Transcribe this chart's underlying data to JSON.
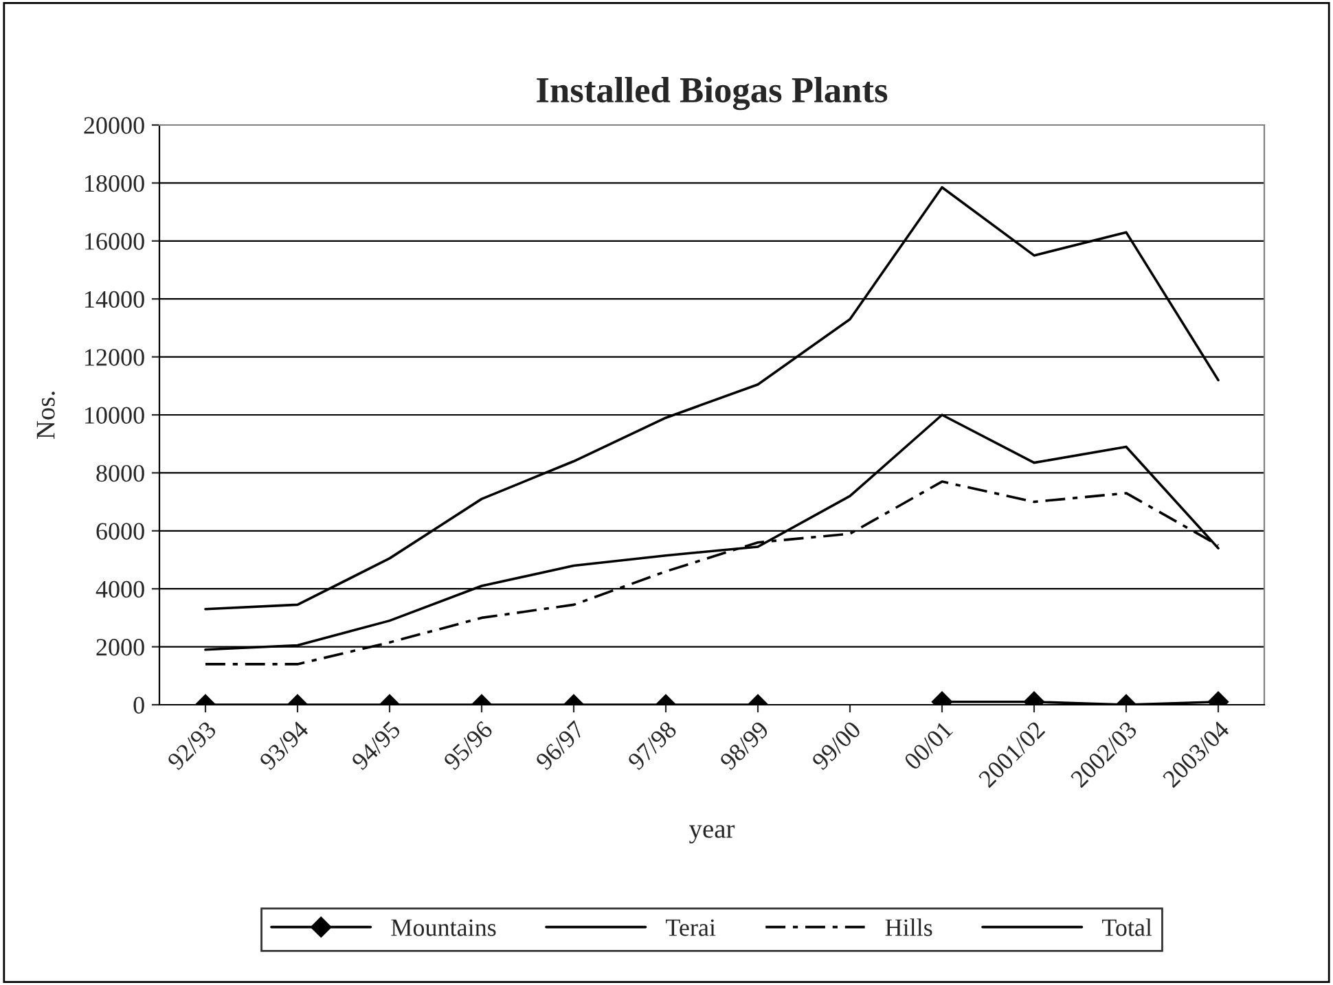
{
  "chart_data": {
    "type": "line",
    "title": "Installed Biogas Plants",
    "xlabel": "year",
    "ylabel": "Nos.",
    "categories": [
      "92/93",
      "93/94",
      "94/95",
      "95/96",
      "96/97",
      "97/98",
      "98/99",
      "99/00",
      "00/01",
      "2001/02",
      "2002/03",
      "2003/04"
    ],
    "series": [
      {
        "name": "Mountains",
        "color": "#000000",
        "marker": "diamond",
        "line_style": "solid",
        "values": [
          0,
          0,
          0,
          0,
          0,
          0,
          0,
          null,
          100,
          100,
          0,
          100
        ]
      },
      {
        "name": "Terai",
        "color": "#000000",
        "marker": "none",
        "line_style": "solid",
        "values": [
          1900,
          2050,
          2900,
          4100,
          4800,
          5150,
          5450,
          7200,
          10000,
          8350,
          8900,
          5400
        ]
      },
      {
        "name": "Hills",
        "color": "#000000",
        "marker": "none",
        "line_style": "dashdot",
        "values": [
          1400,
          1400,
          2150,
          3000,
          3450,
          4600,
          5600,
          5900,
          7700,
          7000,
          7300,
          5500
        ]
      },
      {
        "name": "Total",
        "color": "#000000",
        "marker": "none",
        "line_style": "solid",
        "values": [
          3300,
          3450,
          5050,
          7100,
          8400,
          9900,
          11050,
          13300,
          17850,
          15500,
          16300,
          11200
        ]
      }
    ],
    "ylim": [
      0,
      20000
    ],
    "yticks": [
      0,
      2000,
      4000,
      6000,
      8000,
      10000,
      12000,
      14000,
      16000,
      18000,
      20000
    ],
    "grid": "y",
    "legend": "bottom"
  }
}
